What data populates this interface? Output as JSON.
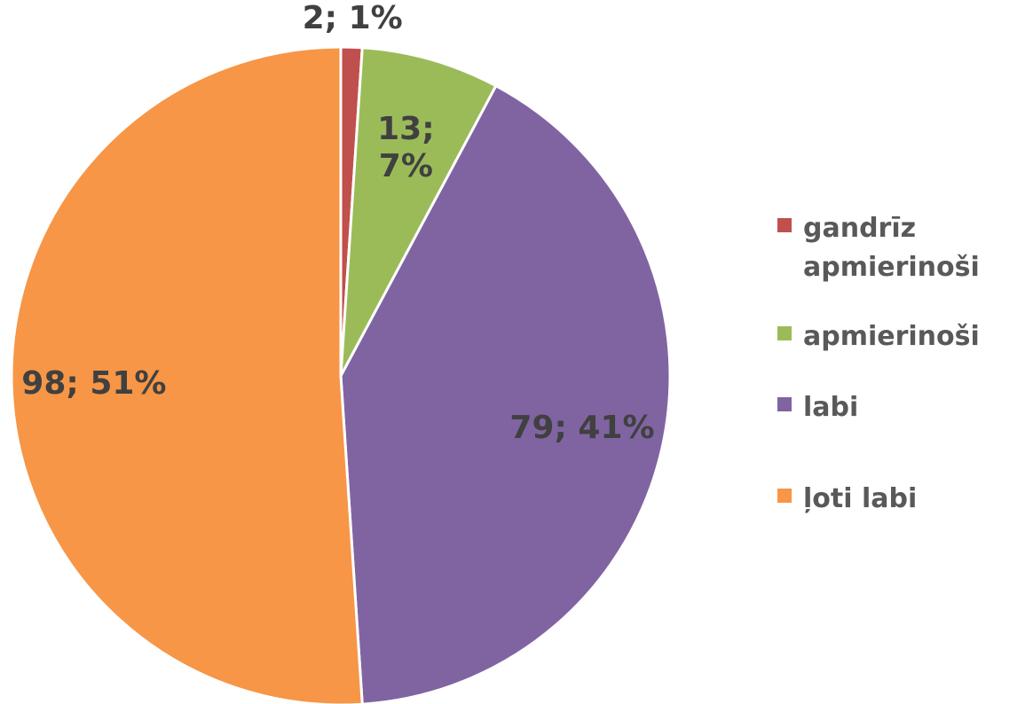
{
  "chart_data": {
    "type": "pie",
    "categories": [
      "gandrīz apmierinoši",
      "apmierinoši",
      "labi",
      "ļoti labi"
    ],
    "values": [
      2,
      13,
      79,
      98
    ],
    "value_labels": [
      "2; 1%",
      "13; 7%",
      "79; 41%",
      "98; 51%"
    ],
    "colors": [
      "#c0504d",
      "#9bbb59",
      "#8064a2",
      "#f79646"
    ],
    "legend": "right"
  }
}
